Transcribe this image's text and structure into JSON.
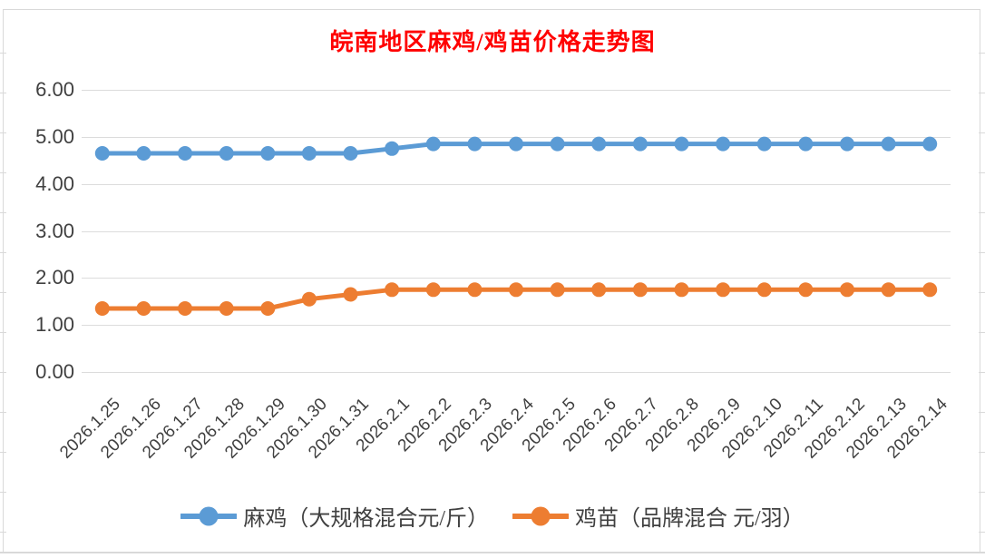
{
  "title": {
    "text": "皖南地区麻鸡/鸡苗价格走势图",
    "color": "#FF0000"
  },
  "chart_data": {
    "type": "line",
    "title": "皖南地区麻鸡/鸡苗价格走势图",
    "categories": [
      "2026.1.25",
      "2026.1.26",
      "2026.1.27",
      "2026.1.28",
      "2026.1.29",
      "2026.1.30",
      "2026.1.31",
      "2026.2.1",
      "2026.2.2",
      "2026.2.3",
      "2026.2.4",
      "2026.2.5",
      "2026.2.6",
      "2026.2.7",
      "2026.2.8",
      "2026.2.9",
      "2026.2.10",
      "2026.2.11",
      "2026.2.12",
      "2026.2.13",
      "2026.2.14"
    ],
    "series": [
      {
        "name": "麻鸡（大规格混合元/斤）",
        "color": "#5B9BD5",
        "values": [
          4.65,
          4.65,
          4.65,
          4.65,
          4.65,
          4.65,
          4.65,
          4.75,
          4.85,
          4.85,
          4.85,
          4.85,
          4.85,
          4.85,
          4.85,
          4.85,
          4.85,
          4.85,
          4.85,
          4.85,
          4.85
        ]
      },
      {
        "name": "鸡苗（品牌混合 元/羽）",
        "color": "#ED7D31",
        "values": [
          1.35,
          1.35,
          1.35,
          1.35,
          1.35,
          1.55,
          1.65,
          1.75,
          1.75,
          1.75,
          1.75,
          1.75,
          1.75,
          1.75,
          1.75,
          1.75,
          1.75,
          1.75,
          1.75,
          1.75,
          1.75
        ]
      }
    ],
    "xlabel": "",
    "ylabel": "",
    "ylim": [
      0,
      6
    ],
    "yticks": [
      0,
      1,
      2,
      3,
      4,
      5,
      6
    ],
    "ytick_labels": [
      "0.00",
      "1.00",
      "2.00",
      "3.00",
      "4.00",
      "5.00",
      "6.00"
    ],
    "grid": true,
    "legend_position": "bottom",
    "gridline_color": "#DCDCDC",
    "axis_label_color": "#404040"
  }
}
